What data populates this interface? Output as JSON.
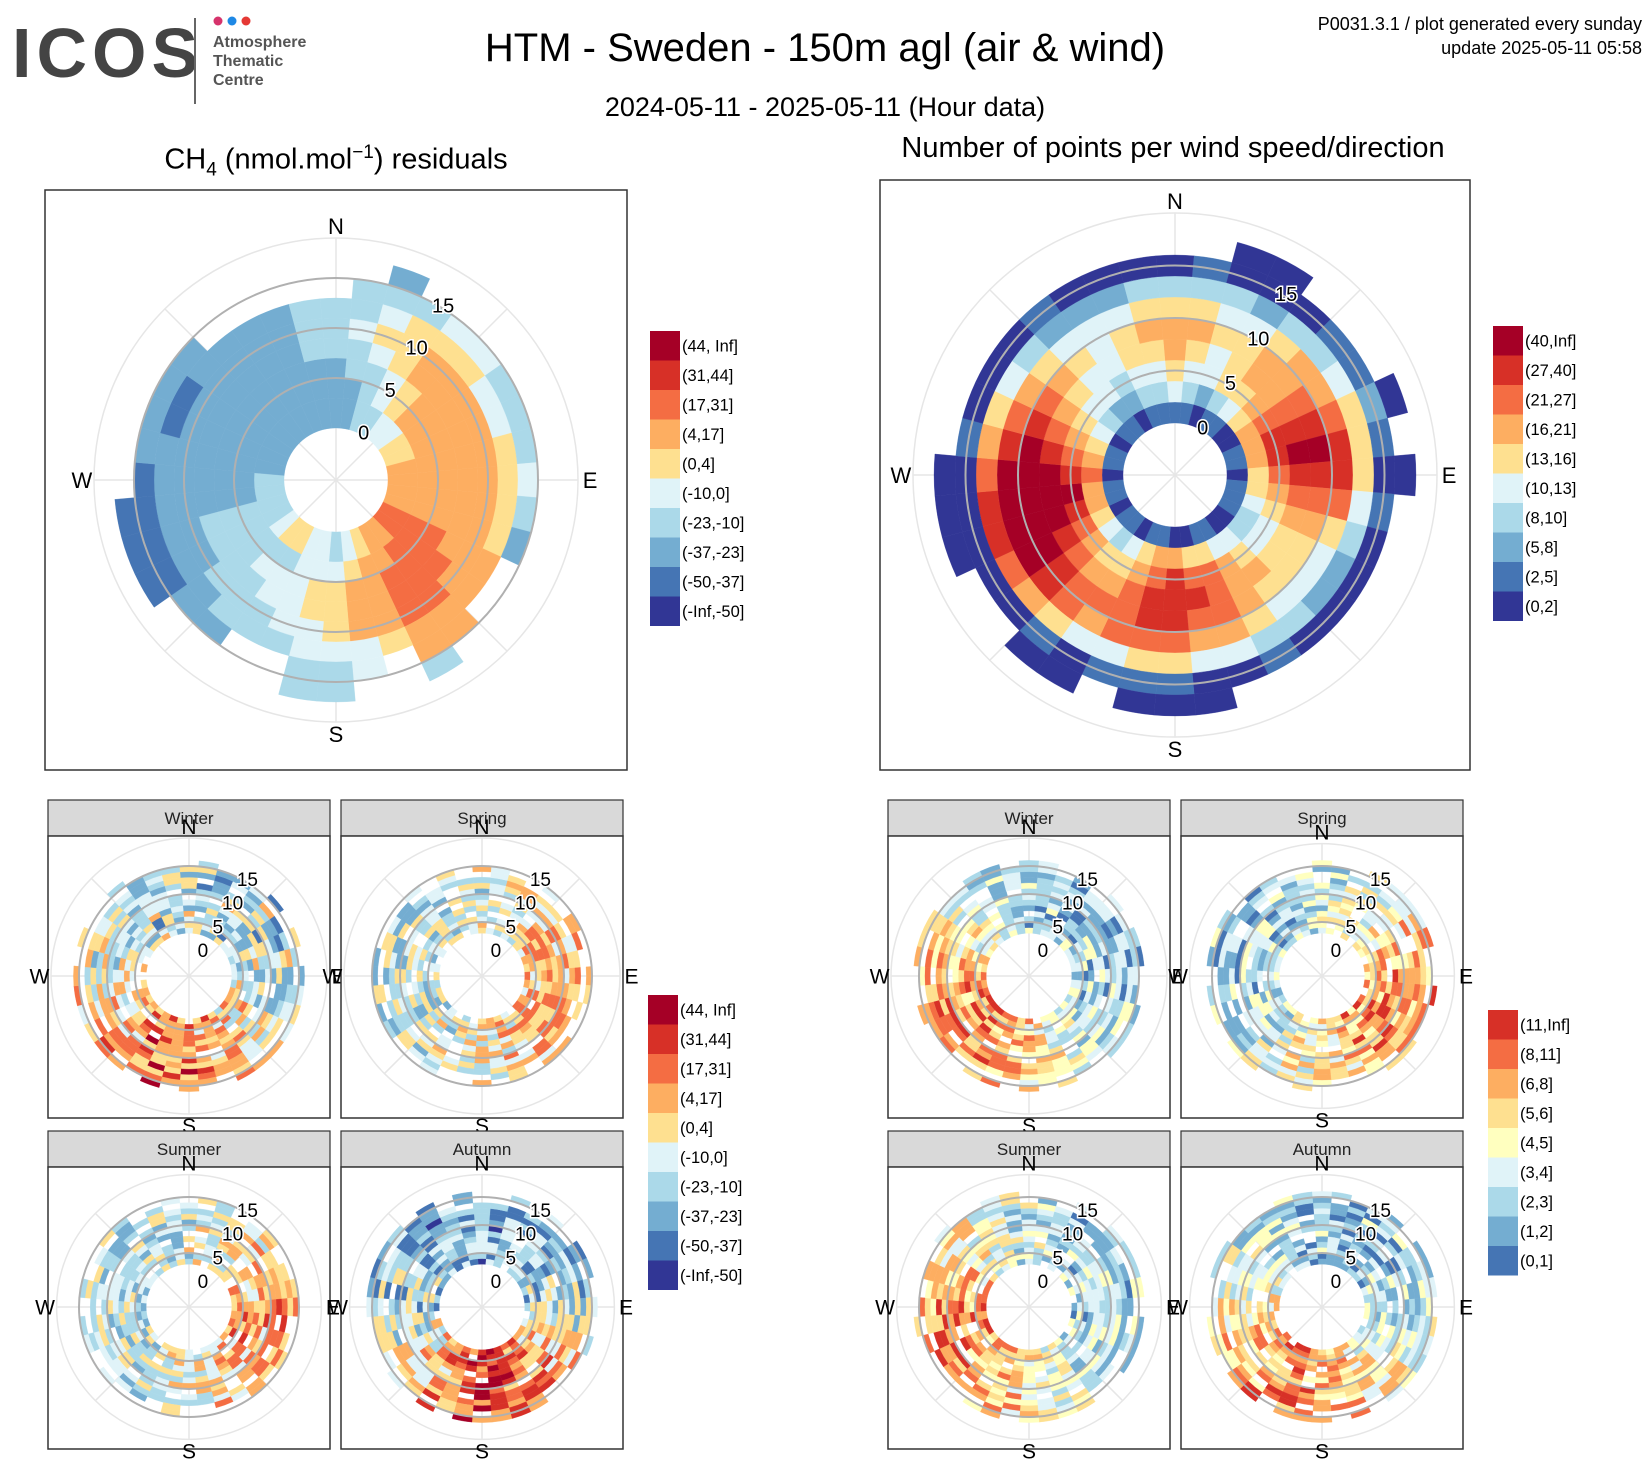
{
  "header": {
    "logo_word": "ICOS",
    "logo_lines": [
      "Atmosphere",
      "Thematic",
      "Centre"
    ],
    "logo_dot_colors": [
      "#d6336c",
      "#1e88e5",
      "#e53935"
    ],
    "title": "HTM - Sweden - 150m agl (air & wind)",
    "subtitle": "2024-05-11 - 2025-05-11 (Hour data)",
    "meta_line1": "P0031.3.1 / plot generated every sunday",
    "meta_line2": "update  2025-05-11 05:58"
  },
  "panels": {
    "left_title_main": "CH",
    "left_title_sub": "4",
    "left_title_mid": " (nmol.mol",
    "left_title_sup": "−1",
    "left_title_end": ") residuals",
    "right_title": "Number of points per wind speed/direction"
  },
  "compass": [
    "N",
    "E",
    "S",
    "W"
  ],
  "season_labels": [
    "Winter",
    "Spring",
    "Summer",
    "Autumn"
  ],
  "legends": {
    "residuals": {
      "labels": [
        "(44, Inf]",
        "(31,44]",
        "(17,31]",
        "(4,17]",
        "(0,4]",
        "(-10,0]",
        "(-23,-10]",
        "(-37,-23]",
        "(-50,-37]",
        "(-Inf,-50]"
      ],
      "colors": [
        "#a50026",
        "#d73027",
        "#f46d43",
        "#fdae61",
        "#fee090",
        "#e0f3f8",
        "#abd9e9",
        "#74add1",
        "#4575b4",
        "#313695"
      ]
    },
    "counts_total": {
      "labels": [
        "(40,Inf]",
        "(27,40]",
        "(21,27]",
        "(16,21]",
        "(13,16]",
        "(10,13]",
        "(8,10]",
        "(5,8]",
        "(2,5]",
        "(0,2]"
      ],
      "colors": [
        "#a50026",
        "#d73027",
        "#f46d43",
        "#fdae61",
        "#fee090",
        "#e0f3f8",
        "#abd9e9",
        "#74add1",
        "#4575b4",
        "#313695"
      ]
    },
    "counts_season": {
      "labels": [
        "(11,Inf]",
        "(8,11]",
        "(6,8]",
        "(5,6]",
        "(4,5]",
        "(3,4]",
        "(2,3]",
        "(1,2]",
        "(0,1]"
      ],
      "colors": [
        "#d73027",
        "#f46d43",
        "#fdae61",
        "#fee090",
        "#ffffbf",
        "#e0f3f8",
        "#abd9e9",
        "#74add1",
        "#4575b4"
      ]
    }
  },
  "chart_data": [
    {
      "type": "heatmap",
      "id": "residuals-total",
      "title": "CH4 (nmol.mol-1) residuals",
      "coordinates": "polar",
      "radial_ticks": [
        0,
        5,
        10,
        15
      ],
      "radial_max_shown": 17,
      "direction_bins": 36,
      "rings": [
        {
          "speed": [
            0,
            3
          ],
          "classes": [
            7,
            7,
            6,
            6,
            5,
            5,
            4,
            4,
            3,
            3,
            3,
            3,
            2,
            2,
            3,
            3,
            4,
            5,
            6,
            5,
            5,
            4,
            4,
            5,
            6,
            6,
            6,
            6,
            7,
            7,
            7,
            7,
            7,
            7,
            7,
            7
          ]
        },
        {
          "speed": [
            3,
            5
          ],
          "classes": [
            7,
            7,
            6,
            5,
            4,
            3,
            3,
            3,
            3,
            3,
            3,
            3,
            2,
            2,
            2,
            3,
            3,
            4,
            5,
            5,
            5,
            6,
            6,
            6,
            6,
            6,
            7,
            7,
            7,
            7,
            7,
            7,
            7,
            7,
            7,
            7
          ]
        },
        {
          "speed": [
            5,
            7
          ],
          "classes": [
            7,
            6,
            6,
            5,
            4,
            3,
            3,
            3,
            3,
            3,
            3,
            3,
            2,
            2,
            2,
            2,
            3,
            3,
            4,
            4,
            5,
            5,
            5,
            6,
            6,
            6,
            7,
            7,
            7,
            7,
            7,
            7,
            7,
            7,
            7,
            7
          ]
        },
        {
          "speed": [
            7,
            9
          ],
          "classes": [
            6,
            6,
            5,
            4,
            3,
            3,
            3,
            3,
            3,
            3,
            3,
            3,
            3,
            2,
            2,
            2,
            3,
            3,
            4,
            4,
            5,
            5,
            6,
            6,
            6,
            6,
            7,
            7,
            7,
            7,
            7,
            7,
            7,
            7,
            7,
            6
          ]
        },
        {
          "speed": [
            9,
            11
          ],
          "classes": [
            6,
            5,
            4,
            4,
            3,
            3,
            3,
            3,
            3,
            3,
            3,
            3,
            3,
            3,
            2,
            2,
            3,
            3,
            4,
            5,
            5,
            6,
            6,
            6,
            7,
            7,
            7,
            7,
            7,
            7,
            7,
            7,
            7,
            7,
            7,
            6
          ]
        },
        {
          "speed": [
            11,
            13
          ],
          "classes": [
            6,
            6,
            5,
            4,
            4,
            4,
            5,
            5,
            4,
            4,
            4,
            4,
            3,
            3,
            3,
            3,
            4,
            5,
            5,
            5,
            6,
            6,
            6,
            7,
            7,
            7,
            7,
            7,
            7,
            8,
            8,
            7,
            7,
            7,
            7,
            6
          ]
        },
        {
          "speed": [
            13,
            15
          ],
          "classes": [
            -1,
            6,
            6,
            6,
            5,
            5,
            6,
            6,
            6,
            5,
            6,
            7,
            -1,
            -1,
            3,
            3,
            -1,
            5,
            6,
            6,
            -1,
            -1,
            7,
            7,
            8,
            8,
            8,
            8,
            7,
            7,
            7,
            7,
            -1,
            -1,
            -1,
            -1
          ]
        },
        {
          "speed": [
            15,
            17
          ],
          "classes": [
            -1,
            -1,
            7,
            -1,
            -1,
            -1,
            -1,
            -1,
            -1,
            -1,
            -1,
            -1,
            -1,
            -1,
            -1,
            6,
            -1,
            -1,
            6,
            6,
            -1,
            -1,
            -1,
            -1,
            8,
            8,
            8,
            -1,
            -1,
            -1,
            -1,
            -1,
            -1,
            -1,
            -1,
            -1
          ]
        }
      ]
    },
    {
      "type": "heatmap",
      "id": "counts-total",
      "title": "Number of points per wind speed/direction",
      "coordinates": "polar",
      "radial_ticks": [
        0,
        5,
        10,
        15
      ],
      "radial_max_shown": 18,
      "direction_bins": 36,
      "rings": [
        {
          "speed": [
            0,
            2
          ],
          "classes": [
            8,
            8,
            9,
            8,
            8,
            9,
            9,
            8,
            8,
            9,
            8,
            8,
            8,
            9,
            9,
            8,
            8,
            9,
            9,
            8,
            8,
            9,
            8,
            8,
            9,
            8,
            8,
            9,
            8,
            8,
            9,
            8,
            8,
            9,
            8,
            8
          ]
        },
        {
          "speed": [
            2,
            4
          ],
          "classes": [
            5,
            6,
            7,
            6,
            5,
            4,
            3,
            3,
            3,
            4,
            4,
            5,
            6,
            6,
            5,
            5,
            4,
            4,
            3,
            3,
            4,
            5,
            6,
            5,
            4,
            3,
            3,
            2,
            3,
            4,
            5,
            6,
            7,
            7,
            6,
            6
          ]
        },
        {
          "speed": [
            4,
            6
          ],
          "classes": [
            4,
            5,
            5,
            4,
            4,
            3,
            2,
            1,
            1,
            2,
            3,
            4,
            5,
            5,
            4,
            3,
            2,
            2,
            1,
            2,
            3,
            4,
            4,
            3,
            2,
            1,
            0,
            1,
            2,
            3,
            4,
            5,
            5,
            6,
            5,
            5
          ]
        },
        {
          "speed": [
            6,
            8
          ],
          "classes": [
            3,
            4,
            5,
            4,
            3,
            3,
            2,
            1,
            0,
            1,
            2,
            3,
            4,
            4,
            3,
            3,
            2,
            1,
            1,
            1,
            2,
            3,
            3,
            2,
            1,
            0,
            0,
            0,
            1,
            2,
            3,
            4,
            5,
            5,
            4,
            4
          ]
        },
        {
          "speed": [
            8,
            10
          ],
          "classes": [
            3,
            3,
            4,
            4,
            3,
            3,
            2,
            1,
            0,
            1,
            2,
            3,
            4,
            4,
            4,
            3,
            2,
            2,
            1,
            1,
            2,
            2,
            2,
            1,
            0,
            0,
            0,
            0,
            0,
            1,
            2,
            3,
            4,
            5,
            4,
            3
          ]
        },
        {
          "speed": [
            10,
            12
          ],
          "classes": [
            4,
            4,
            5,
            5,
            4,
            3,
            3,
            2,
            1,
            1,
            2,
            4,
            5,
            5,
            5,
            4,
            3,
            3,
            2,
            2,
            2,
            3,
            2,
            1,
            0,
            0,
            0,
            0,
            1,
            2,
            3,
            4,
            5,
            5,
            5,
            4
          ]
        },
        {
          "speed": [
            12,
            14
          ],
          "classes": [
            6,
            6,
            6,
            7,
            6,
            6,
            5,
            4,
            4,
            4,
            5,
            6,
            7,
            7,
            6,
            6,
            5,
            5,
            4,
            4,
            5,
            5,
            4,
            3,
            2,
            1,
            1,
            2,
            3,
            4,
            5,
            6,
            7,
            7,
            7,
            6
          ]
        },
        {
          "speed": [
            14,
            16
          ],
          "classes": [
            9,
            8,
            9,
            9,
            9,
            8,
            8,
            7,
            8,
            9,
            8,
            9,
            9,
            9,
            9,
            8,
            9,
            9,
            8,
            8,
            8,
            9,
            8,
            9,
            9,
            9,
            9,
            9,
            8,
            9,
            9,
            9,
            8,
            9,
            9,
            9
          ]
        },
        {
          "speed": [
            16,
            18
          ],
          "classes": [
            -1,
            -1,
            9,
            9,
            -1,
            -1,
            -1,
            9,
            -1,
            9,
            -1,
            -1,
            -1,
            -1,
            -1,
            -1,
            -1,
            9,
            9,
            9,
            -1,
            9,
            9,
            -1,
            -1,
            9,
            9,
            9,
            -1,
            -1,
            -1,
            -1,
            -1,
            -1,
            -1,
            -1
          ]
        }
      ]
    },
    {
      "type": "heatmap",
      "id": "residuals-winter",
      "title": "Winter",
      "coordinates": "polar",
      "radial_ticks": [
        0,
        5,
        10,
        15
      ],
      "radial_max_shown": 18,
      "pattern": {
        "inner_ring": 3,
        "outer_ring": 16,
        "radial_step": 1,
        "direction_bins": 36,
        "seed": 11,
        "warm_center_deg": 200,
        "warm_width_deg": 70,
        "warm_bias": 2.2,
        "cool_bias": 5.6,
        "spread": 2.2
      }
    },
    {
      "type": "heatmap",
      "id": "residuals-spring",
      "title": "Spring",
      "coordinates": "polar",
      "radial_ticks": [
        0,
        5,
        10,
        15
      ],
      "radial_max_shown": 18,
      "pattern": {
        "inner_ring": 3,
        "outer_ring": 15,
        "radial_step": 1,
        "direction_bins": 36,
        "seed": 23,
        "warm_center_deg": 110,
        "warm_width_deg": 90,
        "warm_bias": 3.2,
        "cool_bias": 5.6,
        "spread": 1.8
      }
    },
    {
      "type": "heatmap",
      "id": "residuals-summer",
      "title": "Summer",
      "coordinates": "polar",
      "radial_ticks": [
        0,
        5,
        10,
        15
      ],
      "radial_max_shown": 17,
      "pattern": {
        "inner_ring": 3,
        "outer_ring": 15,
        "radial_step": 1,
        "direction_bins": 36,
        "seed": 37,
        "warm_center_deg": 110,
        "warm_width_deg": 80,
        "warm_bias": 2.8,
        "cool_bias": 5.6,
        "spread": 1.8
      }
    },
    {
      "type": "heatmap",
      "id": "residuals-autumn",
      "title": "Autumn",
      "coordinates": "polar",
      "radial_ticks": [
        0,
        5,
        10,
        15
      ],
      "radial_max_shown": 17,
      "pattern": {
        "inner_ring": 3,
        "outer_ring": 16,
        "radial_step": 1,
        "direction_bins": 36,
        "seed": 41,
        "warm_center_deg": 180,
        "warm_width_deg": 70,
        "warm_bias": 1.4,
        "cool_bias": 6.6,
        "spread": 2.0
      }
    },
    {
      "type": "heatmap",
      "id": "counts-winter",
      "title": "Winter",
      "coordinates": "polar",
      "radial_ticks": [
        0,
        5,
        10,
        15
      ],
      "radial_max_shown": 18,
      "pattern": {
        "inner_ring": 3,
        "outer_ring": 16,
        "radial_step": 1,
        "direction_bins": 36,
        "seed": 53,
        "warm_center_deg": 240,
        "warm_width_deg": 80,
        "warm_bias": 1.6,
        "cool_bias": 6.2,
        "spread": 2.0
      }
    },
    {
      "type": "heatmap",
      "id": "counts-spring",
      "title": "Spring",
      "coordinates": "polar",
      "radial_ticks": [
        0,
        5,
        10,
        15
      ],
      "radial_max_shown": 17,
      "pattern": {
        "inner_ring": 3,
        "outer_ring": 16,
        "radial_step": 1,
        "direction_bins": 36,
        "seed": 67,
        "warm_center_deg": 120,
        "warm_width_deg": 90,
        "warm_bias": 1.8,
        "cool_bias": 6.2,
        "spread": 2.0
      }
    },
    {
      "type": "heatmap",
      "id": "counts-summer",
      "title": "Summer",
      "coordinates": "polar",
      "radial_ticks": [
        0,
        5,
        10,
        15
      ],
      "radial_max_shown": 17,
      "pattern": {
        "inner_ring": 3,
        "outer_ring": 16,
        "radial_step": 1,
        "direction_bins": 36,
        "seed": 79,
        "warm_center_deg": 250,
        "warm_width_deg": 90,
        "warm_bias": 1.6,
        "cool_bias": 6.0,
        "spread": 2.0
      }
    },
    {
      "type": "heatmap",
      "id": "counts-autumn",
      "title": "Autumn",
      "coordinates": "polar",
      "radial_ticks": [
        0,
        5,
        10,
        15
      ],
      "radial_max_shown": 17,
      "pattern": {
        "inner_ring": 3,
        "outer_ring": 16,
        "radial_step": 1,
        "direction_bins": 36,
        "seed": 83,
        "warm_center_deg": 210,
        "warm_width_deg": 90,
        "warm_bias": 1.8,
        "cool_bias": 6.4,
        "spread": 2.0
      }
    }
  ]
}
